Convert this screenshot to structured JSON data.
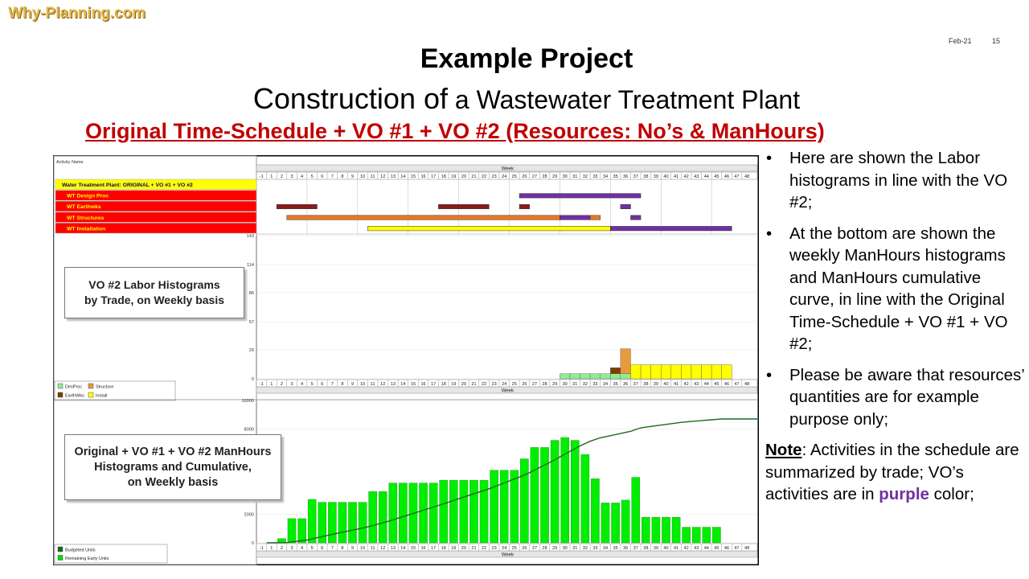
{
  "brand": "Why-Planning.com",
  "slide": {
    "date": "Feb-21",
    "page": "15"
  },
  "title": {
    "line1": "Example Project",
    "line2_a": "Construction of",
    "line2_b": " a Wastewater Treatment Plant",
    "line3": "Original Time-Schedule + VO #1 + VO #2  (Resources: No’s & ManHours)"
  },
  "gantt": {
    "header": "Activity Name",
    "week_label": "Week",
    "weeks": [
      "-1",
      "1",
      "2",
      "3",
      "4",
      "5",
      "6",
      "7",
      "8",
      "9",
      "10",
      "11",
      "12",
      "13",
      "14",
      "15",
      "16",
      "17",
      "18",
      "19",
      "20",
      "21",
      "22",
      "23",
      "24",
      "25",
      "26",
      "27",
      "28",
      "29",
      "30",
      "31",
      "32",
      "33",
      "34",
      "35",
      "36",
      "37",
      "38",
      "39",
      "40",
      "41",
      "42",
      "43",
      "44",
      "45",
      "46",
      "47",
      "48"
    ],
    "rows": [
      {
        "name": "Water Treatment Plant: ORIGINAL + VO #1 + VO #2",
        "fill": "#ffff00",
        "text_color": "#000080"
      },
      {
        "name": "WT Design Proc",
        "fill": "#ff0000",
        "text_color": "#ffff00"
      },
      {
        "name": "WT Earthwks",
        "fill": "#ff0000",
        "text_color": "#ffff00"
      },
      {
        "name": "WT Structures",
        "fill": "#ff0000",
        "text_color": "#ffff00"
      },
      {
        "name": "WT Installation",
        "fill": "#ff0000",
        "text_color": "#ffff00"
      }
    ],
    "bars": [
      {
        "row": 1,
        "from": 25,
        "to": 37,
        "color": "#7030a0"
      },
      {
        "row": 2,
        "from": 1,
        "to": 5,
        "color": "#8b1a1a"
      },
      {
        "row": 2,
        "from": 17,
        "to": 22,
        "color": "#8b1a1a"
      },
      {
        "row": 2,
        "from": 25,
        "to": 26,
        "color": "#8b1a1a"
      },
      {
        "row": 2,
        "from": 35,
        "to": 36,
        "color": "#7030a0"
      },
      {
        "row": 3,
        "from": 2,
        "to": 29,
        "color": "#e87722"
      },
      {
        "row": 3,
        "from": 29,
        "to": 32,
        "color": "#7030a0"
      },
      {
        "row": 3,
        "from": 32,
        "to": 33,
        "color": "#e87722"
      },
      {
        "row": 3,
        "from": 36,
        "to": 37,
        "color": "#7030a0"
      },
      {
        "row": 4,
        "from": 10,
        "to": 34,
        "color": "#ffff00"
      },
      {
        "row": 4,
        "from": 34,
        "to": 46,
        "color": "#7030a0"
      }
    ]
  },
  "labor_chart": {
    "callout": [
      "VO #2 Labor Histograms",
      "by Trade, on Weekly basis"
    ],
    "y_ticks": [
      "0",
      "29",
      "57",
      "86",
      "114",
      "143"
    ],
    "ymax": 143,
    "legend": [
      {
        "label": "DesProc",
        "color": "#90ee90"
      },
      {
        "label": "Structure",
        "color": "#e89a3c"
      },
      {
        "label": "EarthWks",
        "color": "#7b3f00"
      },
      {
        "label": "Install",
        "color": "#ffff00"
      }
    ],
    "stacks": [
      {
        "week": 29,
        "green": 5
      },
      {
        "week": 30,
        "green": 5
      },
      {
        "week": 31,
        "green": 5
      },
      {
        "week": 32,
        "green": 5
      },
      {
        "week": 33,
        "green": 5
      },
      {
        "week": 34,
        "green": 5,
        "brown": 6
      },
      {
        "week": 35,
        "green": 5,
        "orange": 25
      },
      {
        "week": 36,
        "yellow": 14
      },
      {
        "week": 37,
        "yellow": 14
      },
      {
        "week": 38,
        "yellow": 14
      },
      {
        "week": 39,
        "yellow": 14
      },
      {
        "week": 40,
        "yellow": 14
      },
      {
        "week": 41,
        "yellow": 14
      },
      {
        "week": 42,
        "yellow": 14
      },
      {
        "week": 43,
        "yellow": 14
      },
      {
        "week": 44,
        "yellow": 14
      },
      {
        "week": 45,
        "yellow": 14
      }
    ]
  },
  "manhours_chart": {
    "callout": [
      "Original + VO #1 + VO #2 ManHours",
      "Histograms and Cumulative,",
      "on Weekly basis"
    ],
    "y_ticks": [
      "0",
      "2000",
      "8000",
      "10000"
    ],
    "legend": [
      {
        "label": "Budgeted Units",
        "color": "#1a6b1a"
      },
      {
        "label": "Remaining Early Units",
        "color": "#00dd00"
      }
    ],
    "bar_color": "#00ee00",
    "cum_color": "#1a6b1a",
    "weekly": [
      {
        "week": 1,
        "value": 300
      },
      {
        "week": 2,
        "value": 1700
      },
      {
        "week": 3,
        "value": 1700
      },
      {
        "week": 4,
        "value": 3050
      },
      {
        "week": 5,
        "value": 2850
      },
      {
        "week": 6,
        "value": 2850
      },
      {
        "week": 7,
        "value": 2850
      },
      {
        "week": 8,
        "value": 2850
      },
      {
        "week": 9,
        "value": 2850
      },
      {
        "week": 10,
        "value": 3600
      },
      {
        "week": 11,
        "value": 3600
      },
      {
        "week": 12,
        "value": 4200
      },
      {
        "week": 13,
        "value": 4200
      },
      {
        "week": 14,
        "value": 4200
      },
      {
        "week": 15,
        "value": 4200
      },
      {
        "week": 16,
        "value": 4200
      },
      {
        "week": 17,
        "value": 4400
      },
      {
        "week": 18,
        "value": 4400
      },
      {
        "week": 19,
        "value": 4400
      },
      {
        "week": 20,
        "value": 4400
      },
      {
        "week": 21,
        "value": 4400
      },
      {
        "week": 22,
        "value": 5100
      },
      {
        "week": 23,
        "value": 5100
      },
      {
        "week": 24,
        "value": 5100
      },
      {
        "week": 25,
        "value": 5900
      },
      {
        "week": 26,
        "value": 6700
      },
      {
        "week": 27,
        "value": 6700
      },
      {
        "week": 28,
        "value": 7200
      },
      {
        "week": 29,
        "value": 7400
      },
      {
        "week": 30,
        "value": 7200
      },
      {
        "week": 31,
        "value": 6200
      },
      {
        "week": 32,
        "value": 4500
      },
      {
        "week": 33,
        "value": 2800
      },
      {
        "week": 34,
        "value": 2800
      },
      {
        "week": 35,
        "value": 3000
      },
      {
        "week": 36,
        "value": 4600
      },
      {
        "week": 37,
        "value": 1800
      },
      {
        "week": 38,
        "value": 1800
      },
      {
        "week": 39,
        "value": 1800
      },
      {
        "week": 40,
        "value": 1800
      },
      {
        "week": 41,
        "value": 1100
      },
      {
        "week": 42,
        "value": 1100
      },
      {
        "week": 43,
        "value": 1100
      },
      {
        "week": 44,
        "value": 1100
      }
    ],
    "cumulative_peak_ratio": 0.87
  },
  "notes": {
    "bullets": [
      "Here are shown the Labor histograms in line with the VO #2;",
      "At the bottom are shown the weekly ManHours histograms and ManHours cumulative curve, in line with the Original Time-Schedule + VO #1 + VO #2;",
      "Please be aware that resources’ quantities are for example purpose only;"
    ],
    "note_label": "Note",
    "note_text": ": Activities in the schedule are summarized by trade; VO’s activities are in ",
    "note_emphasis": "purple",
    "note_tail": " color;"
  }
}
